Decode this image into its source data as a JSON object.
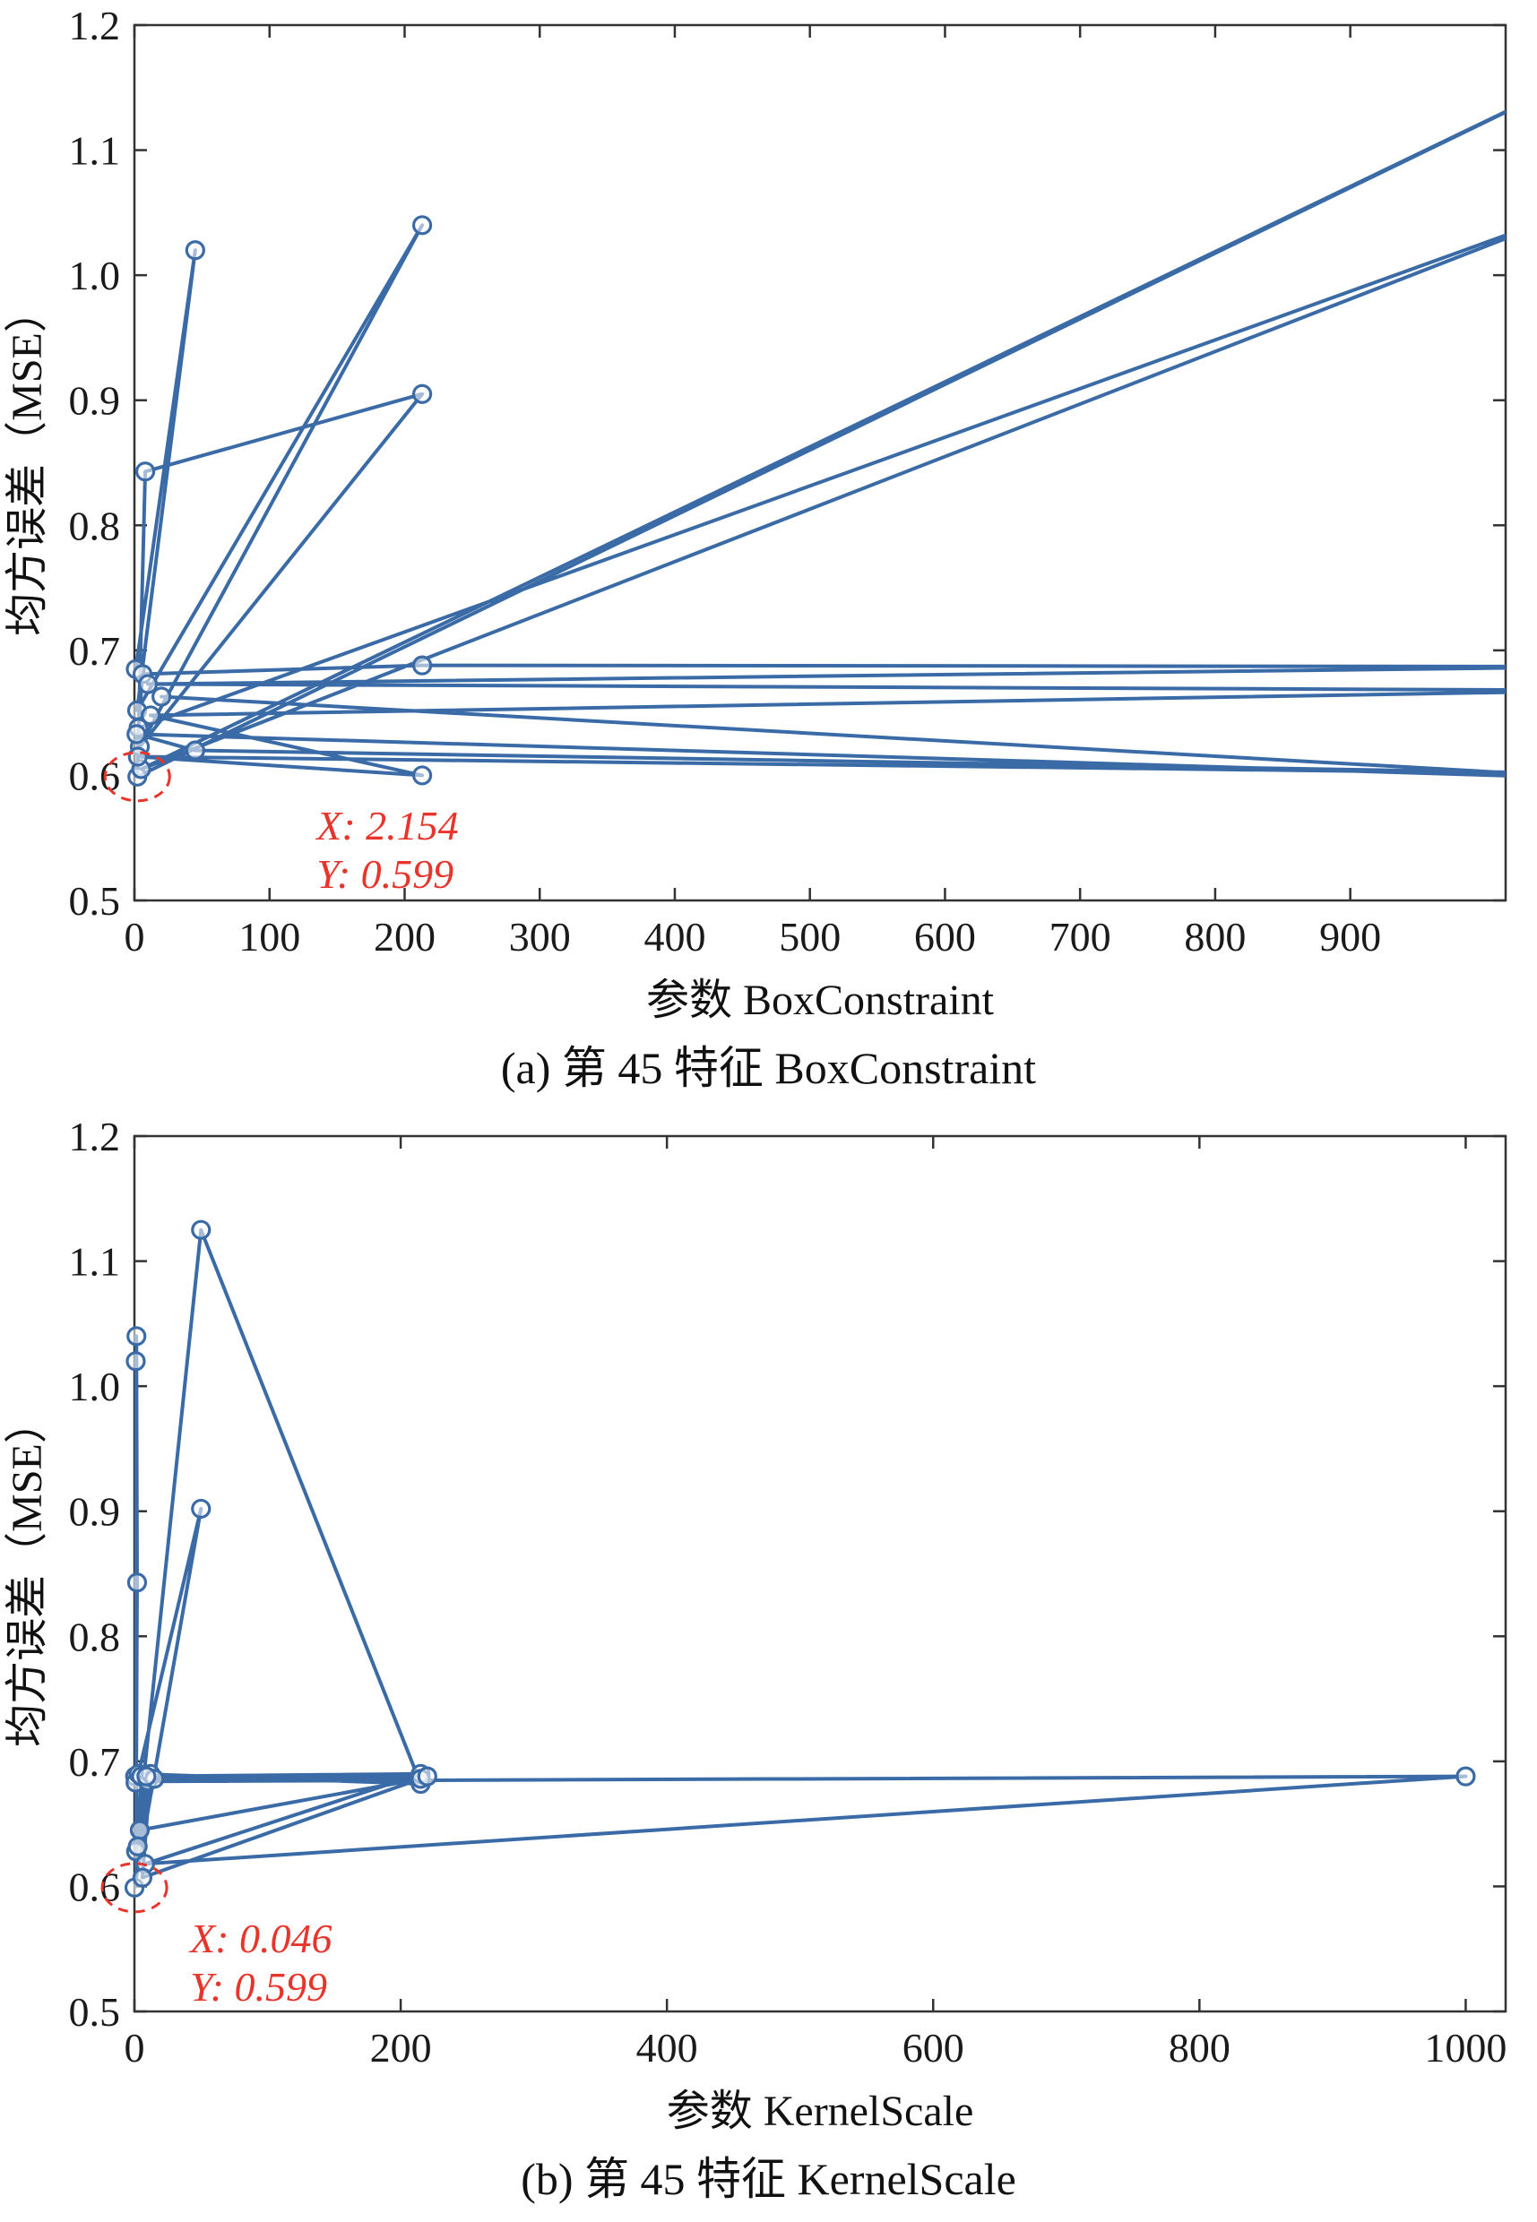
{
  "page": {
    "background": "#ffffff",
    "text_color": "#111111"
  },
  "chart_data": [
    {
      "id": "a",
      "type": "line",
      "xlabel": "参数 BoxConstraint",
      "ylabel": "均方误差（MSE）",
      "caption": "(a) 第 45 特征 BoxConstraint",
      "xlim": [
        0,
        1015
      ],
      "ylim": [
        0.5,
        1.2
      ],
      "xticks": [
        0,
        100,
        200,
        300,
        400,
        500,
        600,
        700,
        800,
        900
      ],
      "xtick_labels": [
        "0",
        "100",
        "200",
        "300",
        "400",
        "500",
        "600",
        "700",
        "800",
        "900"
      ],
      "yticks": [
        0.5,
        0.6,
        0.7,
        0.8,
        0.9,
        1.0,
        1.1,
        1.2
      ],
      "ytick_labels": [
        "0.5",
        "0.6",
        "0.7",
        "0.8",
        "0.9",
        "1.0",
        "1.1",
        "1.2"
      ],
      "grid": false,
      "legend": null,
      "line_color": "#3a6ba6",
      "axis_color": "#333333",
      "annotation_color": "#e8352b",
      "series": [
        {
          "name": "optimization-trace-boxconstraint",
          "points": [
            [
              1.0,
              0.685
            ],
            [
              45,
              1.02
            ],
            [
              2.0,
              0.652
            ],
            [
              213,
              1.04
            ],
            [
              4.0,
              0.623
            ],
            [
              213,
              0.905
            ],
            [
              8.0,
              0.843
            ],
            [
              2.154,
              0.599
            ],
            [
              1100,
              1.175
            ],
            [
              5.0,
              0.605
            ],
            [
              1100,
              1.065
            ],
            [
              3.0,
              0.638
            ],
            [
              6.0,
              0.681
            ],
            [
              213,
              0.688
            ],
            [
              1100,
              0.687
            ],
            [
              10,
              0.673
            ],
            [
              1100,
              0.668
            ],
            [
              12,
              0.648
            ],
            [
              213,
              0.6
            ],
            [
              2.5,
              0.615
            ],
            [
              1100,
              0.601
            ],
            [
              45,
              0.62
            ],
            [
              1.5,
              0.633
            ],
            [
              1100,
              0.597
            ],
            [
              20,
              0.663
            ]
          ]
        }
      ],
      "annotation": {
        "label_x": "X: 2.154",
        "label_y": "Y: 0.599",
        "point": [
          2.154,
          0.599
        ],
        "text_dx": 200,
        "text_dy": 70,
        "line_gap": 54
      }
    },
    {
      "id": "b",
      "type": "line",
      "xlabel": "参数 KernelScale",
      "ylabel": "均方误差（MSE）",
      "caption": "(b) 第 45 特征 KernelScale",
      "xlim": [
        0,
        1030
      ],
      "ylim": [
        0.5,
        1.2
      ],
      "xticks": [
        0,
        200,
        400,
        600,
        800,
        1000
      ],
      "xtick_labels": [
        "0",
        "200",
        "400",
        "600",
        "800",
        "1000"
      ],
      "yticks": [
        0.5,
        0.6,
        0.7,
        0.8,
        0.9,
        1.0,
        1.1,
        1.2
      ],
      "ytick_labels": [
        "0.5",
        "0.6",
        "0.7",
        "0.8",
        "0.9",
        "1.0",
        "1.1",
        "1.2"
      ],
      "grid": false,
      "legend": null,
      "line_color": "#3a6ba6",
      "axis_color": "#333333",
      "annotation_color": "#e8352b",
      "series": [
        {
          "name": "optimization-trace-kernelscale",
          "points": [
            [
              0.5,
              0.688
            ],
            [
              1.0,
              1.02
            ],
            [
              0.8,
              0.683
            ],
            [
              1.5,
              1.04
            ],
            [
              2.0,
              0.843
            ],
            [
              1.2,
              0.628
            ],
            [
              50,
              1.125
            ],
            [
              215,
              0.682
            ],
            [
              3.0,
              0.69
            ],
            [
              50,
              0.902
            ],
            [
              0.046,
              0.599
            ],
            [
              5.0,
              0.688
            ],
            [
              215,
              0.69
            ],
            [
              8.0,
              0.618
            ],
            [
              1000,
              0.688
            ],
            [
              10,
              0.684
            ],
            [
              215,
              0.686
            ],
            [
              4.0,
              0.645
            ],
            [
              12,
              0.69
            ],
            [
              6.0,
              0.607
            ],
            [
              220,
              0.688
            ],
            [
              15,
              0.686
            ],
            [
              2.5,
              0.632
            ],
            [
              9.0,
              0.688
            ]
          ]
        }
      ],
      "annotation": {
        "label_x": "X: 0.046",
        "label_y": "Y: 0.599",
        "point": [
          0.046,
          0.599
        ],
        "text_dx": 62,
        "text_dy": 72,
        "line_gap": 54
      }
    }
  ]
}
